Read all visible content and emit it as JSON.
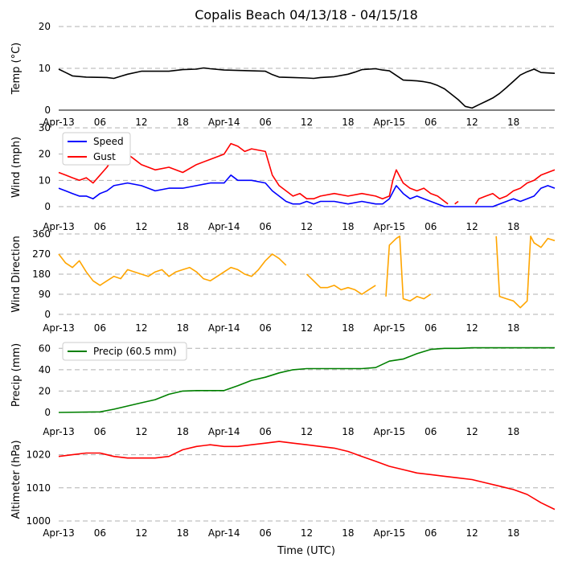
{
  "title": "Copalis Beach 04/13/18 - 04/15/18",
  "x_axis_label": "Time (UTC)",
  "x_ticks": [
    "Apr-13",
    "06",
    "12",
    "18",
    "Apr-14",
    "06",
    "12",
    "18",
    "Apr-15",
    "06",
    "12",
    "18"
  ],
  "x_tick_hours": [
    0,
    6,
    12,
    18,
    24,
    30,
    36,
    42,
    48,
    54,
    60,
    66
  ],
  "x_range_hours": [
    0,
    72
  ],
  "colors": {
    "temp": "#000000",
    "speed": "#0000ff",
    "gust": "#ff0000",
    "direction": "#ffa500",
    "precip": "#008000",
    "altimeter": "#ff0000",
    "grid": "#b0b0b0"
  },
  "chart_data": [
    {
      "type": "line",
      "ylabel": "Temp (°C)",
      "ylim": [
        0,
        20
      ],
      "yticks": [
        "0",
        "10",
        "20"
      ],
      "ytick_values": [
        0,
        10,
        20
      ],
      "series": [
        {
          "name": "Temp",
          "x": [
            0,
            1,
            2,
            4,
            7,
            8,
            9,
            10,
            12,
            14,
            16,
            18,
            20,
            21,
            22,
            24,
            26,
            28,
            30,
            31,
            32,
            34,
            36,
            37,
            38,
            40,
            42,
            43,
            44,
            46,
            47,
            48,
            50,
            51,
            52,
            53,
            54,
            55,
            56,
            57,
            58,
            59,
            60,
            61,
            62,
            63,
            64,
            65,
            66,
            67,
            68,
            69,
            70,
            71,
            72
          ],
          "y": [
            9.8,
            9,
            8.2,
            7.9,
            7.8,
            7.6,
            8.1,
            8.6,
            9.3,
            9.3,
            9.3,
            9.7,
            9.8,
            10.1,
            9.9,
            9.6,
            9.5,
            9.4,
            9.3,
            8.5,
            7.9,
            7.8,
            7.7,
            7.6,
            7.8,
            8,
            8.6,
            9.1,
            9.7,
            9.9,
            9.6,
            9.4,
            7.2,
            7.1,
            7,
            6.8,
            6.5,
            5.9,
            5.1,
            3.8,
            2.5,
            0.9,
            0.5,
            1.3,
            2.1,
            2.9,
            4,
            5.4,
            6.9,
            8.4,
            9.2,
            9.8,
            9,
            8.9,
            8.8
          ]
        }
      ]
    },
    {
      "type": "line",
      "ylabel": "Wind (mph)",
      "ylim": [
        0,
        30
      ],
      "yticks": [
        "0",
        "10",
        "20",
        "30"
      ],
      "ytick_values": [
        0,
        10,
        20,
        30
      ],
      "legend": [
        "Speed",
        "Gust"
      ],
      "series": [
        {
          "name": "Speed",
          "x": [
            0,
            1,
            2,
            3,
            4,
            5,
            6,
            7,
            8,
            10,
            12,
            14,
            16,
            18,
            20,
            22,
            24,
            25,
            26,
            28,
            30,
            31,
            32,
            33,
            34,
            35,
            36,
            37,
            38,
            40,
            42,
            44,
            46,
            47,
            48,
            49,
            50,
            51,
            52,
            53,
            54,
            55,
            56,
            58,
            60,
            62,
            63,
            64,
            65,
            66,
            67,
            68,
            69,
            70,
            71,
            72
          ],
          "y": [
            7,
            6,
            5,
            4,
            4,
            3,
            5,
            6,
            8,
            9,
            8,
            6,
            7,
            7,
            8,
            9,
            9,
            12,
            10,
            10,
            9,
            6,
            4,
            2,
            1,
            1,
            2,
            1,
            2,
            2,
            1,
            2,
            1,
            1,
            3,
            8,
            5,
            3,
            4,
            3,
            2,
            1,
            0,
            0,
            0,
            0,
            0,
            1,
            2,
            3,
            2,
            3,
            4,
            7,
            8,
            7
          ]
        },
        {
          "name": "Gust",
          "x": [
            0,
            1,
            2,
            3,
            4,
            5,
            6,
            7,
            8,
            9,
            10,
            11,
            12,
            13,
            14,
            16,
            18,
            20,
            22,
            24,
            25,
            26,
            27,
            28,
            30,
            31,
            32,
            33,
            34,
            35,
            36,
            37,
            38,
            40,
            42,
            44,
            46,
            47,
            48,
            48.5,
            49,
            50,
            51,
            52,
            53,
            54,
            55,
            56,
            56.5
          ],
          "y": [
            13,
            12,
            11,
            10,
            11,
            9,
            12,
            15,
            19,
            22,
            20,
            18,
            16,
            15,
            14,
            15,
            13,
            16,
            18,
            20,
            24,
            23,
            21,
            22,
            21,
            12,
            8,
            6,
            4,
            5,
            3,
            3,
            4,
            5,
            4,
            5,
            4,
            3,
            4,
            10,
            14,
            9,
            7,
            6,
            7,
            5,
            4,
            2,
            1
          ]
        },
        {
          "name": "Gust",
          "x": [
            57.5,
            58
          ],
          "y": [
            1,
            2
          ]
        },
        {
          "name": "Gust",
          "x": [
            60.5,
            61,
            62,
            63,
            64,
            65,
            66,
            67,
            68,
            69,
            70,
            71,
            72
          ],
          "y": [
            1,
            3,
            4,
            5,
            3,
            4,
            6,
            7,
            9,
            10,
            12,
            13,
            14
          ]
        }
      ]
    },
    {
      "type": "line",
      "ylabel": "Wind Direction",
      "ylim": [
        0,
        360
      ],
      "yticks": [
        "0",
        "90",
        "180",
        "270",
        "360"
      ],
      "ytick_values": [
        0,
        90,
        180,
        270,
        360
      ],
      "series": [
        {
          "name": "Direction",
          "x": [
            0,
            1,
            2,
            3,
            4,
            5,
            6,
            7,
            8,
            9,
            10,
            11,
            12,
            13,
            14,
            15,
            16,
            17,
            18,
            19,
            20,
            21,
            22,
            23,
            24,
            25,
            26,
            27,
            28,
            29,
            30,
            31,
            32,
            33
          ],
          "y": [
            270,
            230,
            210,
            240,
            190,
            150,
            130,
            150,
            170,
            160,
            200,
            190,
            180,
            170,
            190,
            200,
            170,
            190,
            200,
            210,
            190,
            160,
            150,
            170,
            190,
            210,
            200,
            180,
            170,
            200,
            240,
            270,
            250,
            220
          ]
        },
        {
          "name": "Direction",
          "x": [
            36,
            37,
            38,
            39,
            40,
            41,
            42,
            43,
            44,
            45,
            46
          ],
          "y": [
            180,
            150,
            120,
            120,
            130,
            110,
            120,
            110,
            90,
            110,
            130
          ]
        },
        {
          "name": "Direction",
          "x": [
            47.5,
            48,
            49,
            49.5,
            50,
            51,
            52,
            53,
            54
          ],
          "y": [
            80,
            310,
            340,
            350,
            70,
            60,
            80,
            70,
            90
          ]
        },
        {
          "name": "Direction",
          "x": [
            63.5,
            64,
            65,
            66,
            67,
            68,
            68.5,
            69,
            70,
            71,
            72
          ],
          "y": [
            350,
            80,
            70,
            60,
            30,
            60,
            350,
            320,
            300,
            340,
            330
          ]
        }
      ]
    },
    {
      "type": "line",
      "ylabel": "Precip (mm)",
      "ylim": [
        0,
        70
      ],
      "yticks": [
        "0",
        "20",
        "40",
        "60"
      ],
      "ytick_values": [
        0,
        20,
        40,
        60
      ],
      "legend": [
        "Precip (60.5 mm)"
      ],
      "series": [
        {
          "name": "Precip (60.5 mm)",
          "x": [
            0,
            6,
            8,
            10,
            12,
            14,
            16,
            18,
            20,
            22,
            24,
            26,
            28,
            30,
            32,
            34,
            36,
            38,
            40,
            42,
            44,
            46,
            48,
            50,
            52,
            54,
            56,
            58,
            60,
            62,
            64,
            66,
            68,
            70,
            72
          ],
          "y": [
            0,
            0.5,
            3,
            6,
            9,
            12,
            17,
            20,
            20.5,
            20.5,
            20.5,
            25,
            30,
            33,
            37,
            40,
            41,
            41,
            41,
            41,
            41,
            42,
            48,
            50,
            55,
            59,
            60,
            60,
            60.5,
            60.5,
            60.5,
            60.5,
            60.5,
            60.5,
            60.5
          ]
        }
      ]
    },
    {
      "type": "line",
      "ylabel": "Altimeter (hPa)",
      "ylim": [
        1000,
        1025
      ],
      "yticks": [
        "1000",
        "1010",
        "1020"
      ],
      "ytick_values": [
        1000,
        1010,
        1020
      ],
      "series": [
        {
          "name": "Altimeter",
          "x": [
            0,
            2,
            4,
            6,
            8,
            10,
            12,
            14,
            16,
            18,
            20,
            22,
            24,
            26,
            28,
            30,
            32,
            34,
            36,
            38,
            40,
            42,
            44,
            46,
            48,
            50,
            52,
            54,
            56,
            58,
            60,
            62,
            64,
            66,
            68,
            70,
            72
          ],
          "y": [
            1019.5,
            1020,
            1020.5,
            1020.5,
            1019.5,
            1019,
            1019,
            1019,
            1019.5,
            1021.5,
            1022.5,
            1023,
            1022.5,
            1022.5,
            1023,
            1023.5,
            1024,
            1023.5,
            1023,
            1022.5,
            1022,
            1021,
            1019.5,
            1018,
            1016.5,
            1015.5,
            1014.5,
            1014,
            1013.5,
            1013,
            1012.5,
            1011.5,
            1010.5,
            1009.5,
            1008,
            1005.5,
            1003.5
          ]
        }
      ]
    }
  ]
}
